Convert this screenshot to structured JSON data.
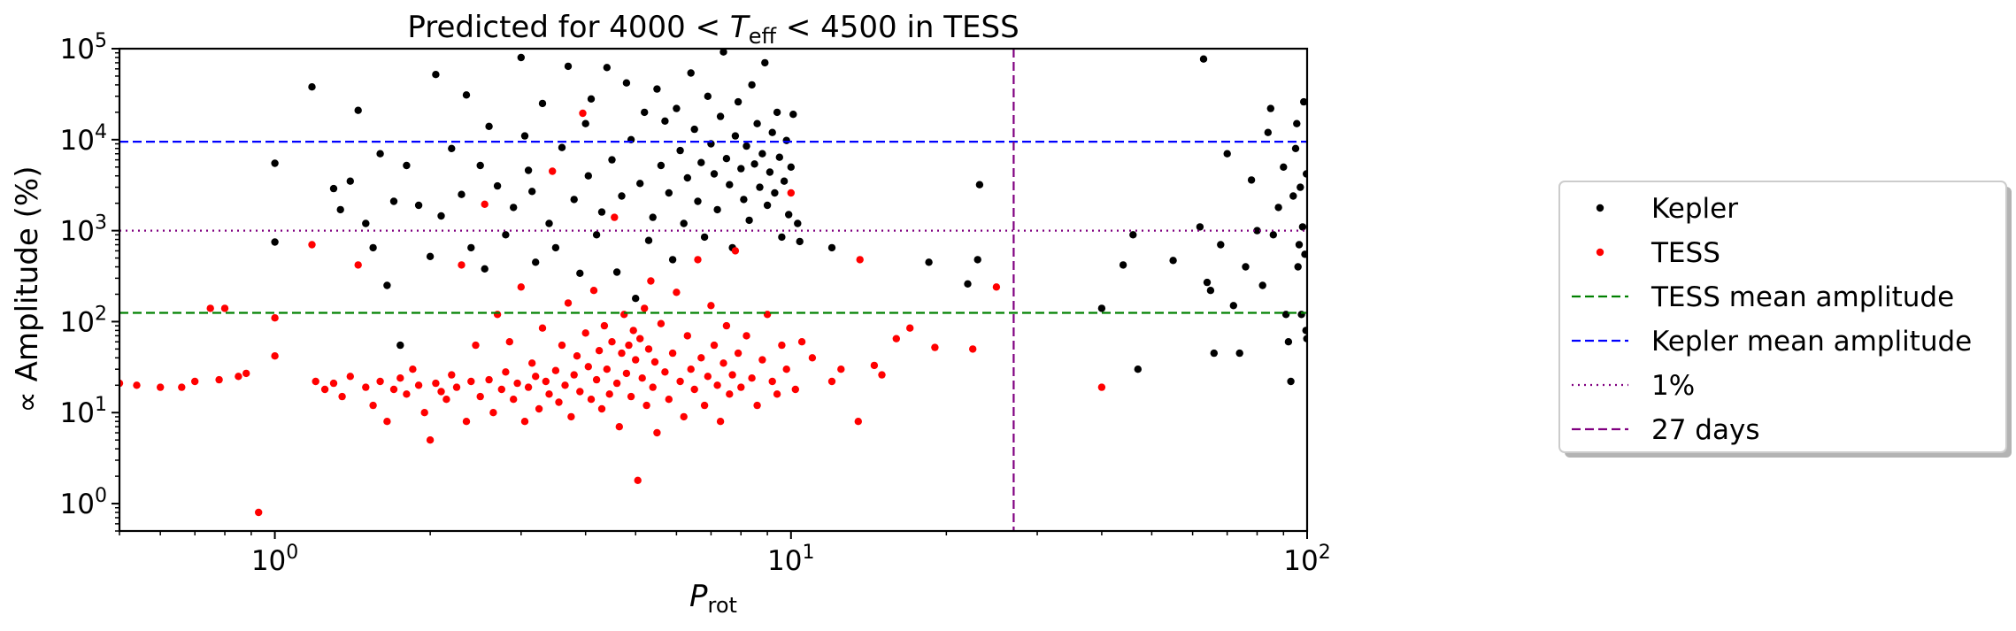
{
  "chart_data": {
    "type": "scatter",
    "title": "Predicted for 4000 < T_eff < 4500 in TESS",
    "title_parts": {
      "pre": "Predicted for 4000 < ",
      "var": "T",
      "sub": "eff",
      "post": " < 4500 in TESS"
    },
    "xlabel": "P_rot",
    "xlabel_parts": {
      "var": "P",
      "sub": "rot"
    },
    "ylabel": "∝ Amplitude (%)",
    "x_scale": "log",
    "y_scale": "log",
    "xlim": [
      0.5,
      100
    ],
    "ylim": [
      0.5,
      100000
    ],
    "x_ticks": [
      {
        "value": 1,
        "base": "10",
        "exp": "0"
      },
      {
        "value": 10,
        "base": "10",
        "exp": "1"
      },
      {
        "value": 100,
        "base": "10",
        "exp": "2"
      }
    ],
    "y_ticks": [
      {
        "value": 1,
        "base": "10",
        "exp": "0"
      },
      {
        "value": 10,
        "base": "10",
        "exp": "1"
      },
      {
        "value": 100,
        "base": "10",
        "exp": "2"
      },
      {
        "value": 1000,
        "base": "10",
        "exp": "3"
      },
      {
        "value": 10000,
        "base": "10",
        "exp": "4"
      },
      {
        "value": 100000,
        "base": "10",
        "exp": "5"
      }
    ],
    "grid": false,
    "legend_placement": "outside-right",
    "series": [
      {
        "name": "Kepler",
        "kind": "points",
        "color": "#000000",
        "points": [
          [
            1.0,
            5500
          ],
          [
            1.0,
            750
          ],
          [
            1.18,
            38000
          ],
          [
            1.3,
            2900
          ],
          [
            1.34,
            1700
          ],
          [
            1.4,
            3500
          ],
          [
            1.45,
            21000
          ],
          [
            1.5,
            1200
          ],
          [
            1.55,
            650
          ],
          [
            1.6,
            7000
          ],
          [
            1.65,
            250
          ],
          [
            1.7,
            2100
          ],
          [
            1.75,
            55
          ],
          [
            1.8,
            5200
          ],
          [
            1.9,
            1900
          ],
          [
            2.0,
            520
          ],
          [
            2.05,
            52000
          ],
          [
            2.1,
            1450
          ],
          [
            2.2,
            8000
          ],
          [
            2.3,
            2500
          ],
          [
            2.35,
            31000
          ],
          [
            2.4,
            650
          ],
          [
            2.5,
            5200
          ],
          [
            2.55,
            380
          ],
          [
            2.6,
            14000
          ],
          [
            2.7,
            3100
          ],
          [
            2.8,
            900
          ],
          [
            2.9,
            1800
          ],
          [
            3.0,
            80000
          ],
          [
            3.05,
            11000
          ],
          [
            3.1,
            4600
          ],
          [
            3.15,
            2700
          ],
          [
            3.2,
            450
          ],
          [
            3.3,
            25000
          ],
          [
            3.4,
            1200
          ],
          [
            3.5,
            650
          ],
          [
            3.6,
            8200
          ],
          [
            3.7,
            64000
          ],
          [
            3.8,
            2200
          ],
          [
            3.9,
            340
          ],
          [
            4.0,
            15000
          ],
          [
            4.05,
            4000
          ],
          [
            4.1,
            28000
          ],
          [
            4.2,
            900
          ],
          [
            4.3,
            1600
          ],
          [
            4.4,
            62000
          ],
          [
            4.5,
            6000
          ],
          [
            4.6,
            350
          ],
          [
            4.7,
            2400
          ],
          [
            4.8,
            42000
          ],
          [
            4.9,
            10000
          ],
          [
            5.0,
            180
          ],
          [
            5.1,
            3300
          ],
          [
            5.2,
            20000
          ],
          [
            5.3,
            780
          ],
          [
            5.4,
            1400
          ],
          [
            5.5,
            36000
          ],
          [
            5.6,
            5200
          ],
          [
            5.7,
            16000
          ],
          [
            5.8,
            2600
          ],
          [
            5.9,
            480
          ],
          [
            6.0,
            22000
          ],
          [
            6.1,
            7600
          ],
          [
            6.2,
            1200
          ],
          [
            6.3,
            3800
          ],
          [
            6.4,
            54000
          ],
          [
            6.5,
            13000
          ],
          [
            6.6,
            2100
          ],
          [
            6.7,
            5600
          ],
          [
            6.8,
            850
          ],
          [
            6.9,
            30000
          ],
          [
            7.0,
            9000
          ],
          [
            7.1,
            4200
          ],
          [
            7.2,
            1700
          ],
          [
            7.3,
            18000
          ],
          [
            7.4,
            92000
          ],
          [
            7.5,
            6200
          ],
          [
            7.6,
            3200
          ],
          [
            7.7,
            650
          ],
          [
            7.8,
            11000
          ],
          [
            7.9,
            26000
          ],
          [
            8.0,
            4800
          ],
          [
            8.1,
            2200
          ],
          [
            8.2,
            8500
          ],
          [
            8.3,
            1300
          ],
          [
            8.4,
            40000
          ],
          [
            8.5,
            5400
          ],
          [
            8.6,
            15000
          ],
          [
            8.7,
            3000
          ],
          [
            8.8,
            7000
          ],
          [
            8.9,
            70000
          ],
          [
            9.0,
            1900
          ],
          [
            9.1,
            4400
          ],
          [
            9.2,
            12000
          ],
          [
            9.3,
            2600
          ],
          [
            9.4,
            20000
          ],
          [
            9.5,
            6400
          ],
          [
            9.6,
            850
          ],
          [
            9.7,
            3500
          ],
          [
            9.8,
            9800
          ],
          [
            9.9,
            1500
          ],
          [
            10.0,
            5000
          ],
          [
            10.1,
            19000
          ],
          [
            10.3,
            1200
          ],
          [
            10.4,
            760
          ],
          [
            12.0,
            650
          ],
          [
            18.5,
            450
          ],
          [
            22.0,
            260
          ],
          [
            23.2,
            3200
          ],
          [
            23.0,
            480
          ],
          [
            40.0,
            140
          ],
          [
            44.0,
            420
          ],
          [
            46.0,
            900
          ],
          [
            47.0,
            30
          ],
          [
            55.0,
            470
          ],
          [
            62.0,
            1100
          ],
          [
            63.0,
            77000
          ],
          [
            64.0,
            270
          ],
          [
            65.0,
            220
          ],
          [
            66.0,
            45
          ],
          [
            68.0,
            700
          ],
          [
            70.0,
            7000
          ],
          [
            72.0,
            150
          ],
          [
            74.0,
            45
          ],
          [
            76.0,
            400
          ],
          [
            78.0,
            3600
          ],
          [
            80.0,
            1000
          ],
          [
            82.0,
            250
          ],
          [
            84.0,
            12000
          ],
          [
            85.0,
            22000
          ],
          [
            86.0,
            900
          ],
          [
            88.0,
            1800
          ],
          [
            90.0,
            5000
          ],
          [
            91.0,
            120
          ],
          [
            92.0,
            60
          ],
          [
            93.0,
            22
          ],
          [
            94.0,
            2400
          ],
          [
            95.0,
            8000
          ],
          [
            95.5,
            15000
          ],
          [
            96.0,
            400
          ],
          [
            96.5,
            700
          ],
          [
            97.0,
            3000
          ],
          [
            97.5,
            120
          ],
          [
            98.0,
            1100
          ],
          [
            98.5,
            26000
          ],
          [
            99.0,
            550
          ],
          [
            99.5,
            80
          ],
          [
            99.7,
            4200
          ],
          [
            99.9,
            65
          ]
        ]
      },
      {
        "name": "TESS",
        "kind": "points",
        "color": "#ff0000",
        "points": [
          [
            0.5,
            21
          ],
          [
            0.54,
            20
          ],
          [
            0.6,
            19
          ],
          [
            0.66,
            19
          ],
          [
            0.7,
            22
          ],
          [
            0.75,
            140
          ],
          [
            0.78,
            23
          ],
          [
            0.8,
            140
          ],
          [
            0.85,
            25
          ],
          [
            0.88,
            27
          ],
          [
            0.93,
            0.8
          ],
          [
            1.0,
            110
          ],
          [
            1.0,
            42
          ],
          [
            1.18,
            700
          ],
          [
            1.2,
            22
          ],
          [
            1.25,
            18
          ],
          [
            1.3,
            21
          ],
          [
            1.35,
            15
          ],
          [
            1.4,
            25
          ],
          [
            1.45,
            420
          ],
          [
            1.5,
            19
          ],
          [
            1.55,
            12
          ],
          [
            1.6,
            22
          ],
          [
            1.65,
            8
          ],
          [
            1.7,
            18
          ],
          [
            1.75,
            24
          ],
          [
            1.8,
            16
          ],
          [
            1.85,
            30
          ],
          [
            1.9,
            20
          ],
          [
            1.95,
            10
          ],
          [
            2.0,
            5
          ],
          [
            2.05,
            21
          ],
          [
            2.1,
            17
          ],
          [
            2.15,
            14
          ],
          [
            2.2,
            26
          ],
          [
            2.25,
            19
          ],
          [
            2.3,
            420
          ],
          [
            2.35,
            8
          ],
          [
            2.4,
            22
          ],
          [
            2.45,
            55
          ],
          [
            2.5,
            15
          ],
          [
            2.55,
            1950
          ],
          [
            2.6,
            23
          ],
          [
            2.65,
            10
          ],
          [
            2.7,
            120
          ],
          [
            2.75,
            18
          ],
          [
            2.8,
            28
          ],
          [
            2.85,
            60
          ],
          [
            2.9,
            14
          ],
          [
            2.95,
            21
          ],
          [
            3.0,
            240
          ],
          [
            3.05,
            8
          ],
          [
            3.1,
            19
          ],
          [
            3.15,
            35
          ],
          [
            3.2,
            25
          ],
          [
            3.25,
            11
          ],
          [
            3.3,
            85
          ],
          [
            3.35,
            22
          ],
          [
            3.4,
            16
          ],
          [
            3.45,
            4500
          ],
          [
            3.5,
            29
          ],
          [
            3.55,
            13
          ],
          [
            3.6,
            55
          ],
          [
            3.65,
            20
          ],
          [
            3.7,
            160
          ],
          [
            3.75,
            9
          ],
          [
            3.8,
            26
          ],
          [
            3.85,
            42
          ],
          [
            3.9,
            17
          ],
          [
            3.95,
            19500
          ],
          [
            4.0,
            75
          ],
          [
            4.05,
            32
          ],
          [
            4.1,
            14
          ],
          [
            4.15,
            220
          ],
          [
            4.2,
            23
          ],
          [
            4.25,
            48
          ],
          [
            4.3,
            11
          ],
          [
            4.35,
            90
          ],
          [
            4.4,
            30
          ],
          [
            4.45,
            16
          ],
          [
            4.5,
            60
          ],
          [
            4.55,
            1400
          ],
          [
            4.6,
            21
          ],
          [
            4.65,
            7
          ],
          [
            4.7,
            45
          ],
          [
            4.75,
            120
          ],
          [
            4.8,
            27
          ],
          [
            4.85,
            55
          ],
          [
            4.9,
            15
          ],
          [
            4.95,
            80
          ],
          [
            5.0,
            38
          ],
          [
            5.05,
            1.8
          ],
          [
            5.1,
            65
          ],
          [
            5.15,
            24
          ],
          [
            5.2,
            140
          ],
          [
            5.25,
            12
          ],
          [
            5.3,
            50
          ],
          [
            5.35,
            280
          ],
          [
            5.4,
            19
          ],
          [
            5.45,
            36
          ],
          [
            5.5,
            6
          ],
          [
            5.6,
            95
          ],
          [
            5.7,
            28
          ],
          [
            5.8,
            14
          ],
          [
            5.9,
            45
          ],
          [
            6.0,
            210
          ],
          [
            6.1,
            22
          ],
          [
            6.2,
            9
          ],
          [
            6.3,
            70
          ],
          [
            6.4,
            30
          ],
          [
            6.5,
            18
          ],
          [
            6.6,
            480
          ],
          [
            6.7,
            40
          ],
          [
            6.8,
            12
          ],
          [
            6.9,
            25
          ],
          [
            7.0,
            150
          ],
          [
            7.1,
            55
          ],
          [
            7.2,
            20
          ],
          [
            7.3,
            8
          ],
          [
            7.4,
            35
          ],
          [
            7.5,
            90
          ],
          [
            7.6,
            16
          ],
          [
            7.7,
            26
          ],
          [
            7.8,
            600
          ],
          [
            7.9,
            45
          ],
          [
            8.0,
            19
          ],
          [
            8.2,
            70
          ],
          [
            8.4,
            24
          ],
          [
            8.6,
            12
          ],
          [
            8.8,
            38
          ],
          [
            9.0,
            120
          ],
          [
            9.2,
            22
          ],
          [
            9.4,
            16
          ],
          [
            9.6,
            55
          ],
          [
            9.8,
            30
          ],
          [
            10.0,
            2600
          ],
          [
            10.2,
            18
          ],
          [
            10.5,
            60
          ],
          [
            11.0,
            40
          ],
          [
            12.0,
            22
          ],
          [
            12.5,
            30
          ],
          [
            13.5,
            8
          ],
          [
            13.6,
            480
          ],
          [
            14.5,
            33
          ],
          [
            15.0,
            26
          ],
          [
            16.0,
            65
          ],
          [
            17.0,
            85
          ],
          [
            19.0,
            52
          ],
          [
            22.5,
            50
          ],
          [
            25.0,
            240
          ],
          [
            40.0,
            19
          ]
        ]
      },
      {
        "name": "TESS mean amplitude",
        "kind": "hline",
        "y": 125,
        "color": "#008000",
        "style": "dashed"
      },
      {
        "name": "Kepler mean amplitude",
        "kind": "hline",
        "y": 9500,
        "color": "#0000ff",
        "style": "dashed"
      },
      {
        "name": "1%",
        "kind": "hline",
        "y": 1000,
        "color": "#800080",
        "style": "dotted"
      },
      {
        "name": "27 days",
        "kind": "vline",
        "x": 27,
        "color": "#800080",
        "style": "dashed"
      }
    ]
  }
}
